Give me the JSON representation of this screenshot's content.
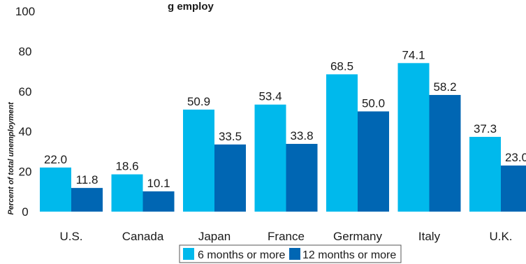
{
  "chart_data": {
    "type": "bar",
    "title": "g      employ",
    "ylabel": "Percent of total unemployment",
    "xlabel": "",
    "ylim": [
      0,
      100
    ],
    "yticks": [
      0,
      20,
      40,
      60,
      80,
      100
    ],
    "ytick_labels": [
      "0",
      "20",
      "40",
      "60",
      "80",
      "100"
    ],
    "categories": [
      "U.S.",
      "Canada",
      "Japan",
      "France",
      "Germany",
      "Italy",
      "U.K."
    ],
    "series": [
      {
        "name": "6 months or more",
        "color": "#00b9ec",
        "values": [
          22.0,
          18.6,
          50.9,
          53.4,
          68.5,
          74.1,
          37.3
        ],
        "labels": [
          "22.0",
          "18.6",
          "50.9",
          "53.4",
          "68.5",
          "74.1",
          "37.3"
        ]
      },
      {
        "name": "12 months or more",
        "color": "#0066b3",
        "values": [
          11.8,
          10.1,
          33.5,
          33.8,
          50.0,
          58.2,
          23.0
        ],
        "labels": [
          "11.8",
          "10.1",
          "33.5",
          "33.8",
          "50.0",
          "58.2",
          "23.0"
        ]
      }
    ],
    "grid": false,
    "legend_position": "bottom"
  }
}
